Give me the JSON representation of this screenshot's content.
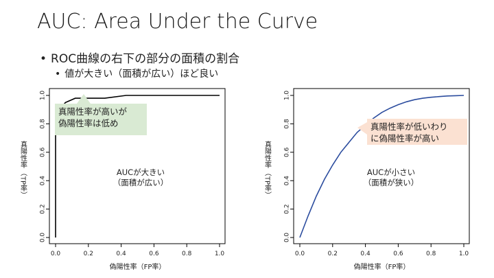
{
  "slide": {
    "title": "AUC: Area Under the Curve",
    "bullet_1": "ROC曲線の右下の部分の面積の割合",
    "bullet_2": "値が大きい（面積が広い）ほど良い",
    "bullet_symbol": "•"
  },
  "chart_data": [
    {
      "type": "line",
      "xlabel": "偽陽性率（FP率）",
      "ylabel_top": "真陽性率",
      "ylabel_bottom": "（TP率）",
      "xlim": [
        0,
        1
      ],
      "ylim": [
        0,
        1
      ],
      "x_ticks": [
        "0.0",
        "0.2",
        "0.4",
        "0.6",
        "0.8",
        "1.0"
      ],
      "y_ticks": [
        "0.0",
        "0.2",
        "0.4",
        "0.6",
        "0.8",
        "1.0"
      ],
      "series": [
        {
          "x": [
            0.0,
            0.0,
            0.02,
            0.04,
            0.06,
            0.12,
            0.3,
            0.43,
            0.6,
            0.8,
            1.0
          ],
          "y": [
            0.0,
            0.72,
            0.88,
            0.92,
            0.95,
            0.98,
            0.98,
            1.0,
            1.0,
            1.0,
            1.0
          ],
          "color": "#000000"
        }
      ],
      "callout": {
        "line1": "真陽性率が高いが",
        "line2": "偽陽性率は低め",
        "color": "#d9ead3"
      },
      "center_label": {
        "line1": "AUCが大きい",
        "line2": "（面積が広い）"
      }
    },
    {
      "type": "line",
      "xlabel": "偽陽性率（FP率）",
      "ylabel_top": "真陽性率",
      "ylabel_bottom": "（TP率）",
      "xlim": [
        0,
        1
      ],
      "ylim": [
        0,
        1
      ],
      "x_ticks": [
        "0.0",
        "0.2",
        "0.4",
        "0.6",
        "0.8",
        "1.0"
      ],
      "y_ticks": [
        "0.0",
        "0.2",
        "0.4",
        "0.6",
        "0.8",
        "1.0"
      ],
      "series": [
        {
          "x": [
            0.0,
            0.05,
            0.1,
            0.15,
            0.2,
            0.25,
            0.3,
            0.35,
            0.4,
            0.45,
            0.5,
            0.55,
            0.6,
            0.65,
            0.7,
            0.75,
            0.8,
            0.85,
            0.9,
            0.95,
            1.0
          ],
          "y": [
            0.0,
            0.15,
            0.29,
            0.41,
            0.51,
            0.6,
            0.67,
            0.74,
            0.79,
            0.84,
            0.88,
            0.91,
            0.935,
            0.955,
            0.97,
            0.98,
            0.987,
            0.992,
            0.996,
            0.998,
            1.0
          ],
          "color": "#2b4c9e"
        }
      ],
      "callout": {
        "line1": "真陽性率が低いわり",
        "line2": "に偽陽性率が高い",
        "color": "#fbe1d2"
      },
      "center_label": {
        "line1": "AUCが小さい",
        "line2": "（面積が狭い）"
      }
    }
  ]
}
